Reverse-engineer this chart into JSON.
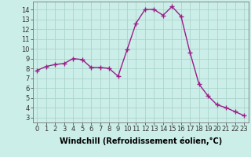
{
  "x": [
    0,
    1,
    2,
    3,
    4,
    5,
    6,
    7,
    8,
    9,
    10,
    11,
    12,
    13,
    14,
    15,
    16,
    17,
    18,
    19,
    20,
    21,
    22,
    23
  ],
  "y": [
    7.8,
    8.2,
    8.4,
    8.5,
    9.0,
    8.9,
    8.1,
    8.1,
    8.0,
    7.2,
    9.9,
    12.6,
    14.0,
    14.0,
    13.4,
    14.3,
    13.3,
    9.6,
    6.4,
    5.2,
    4.3,
    4.0,
    3.6,
    3.2
  ],
  "line_color": "#9b1d8a",
  "marker": "+",
  "marker_size": 4,
  "line_width": 1.0,
  "bg_color": "#cceee8",
  "grid_color": "#aad4cc",
  "xlabel": "Windchill (Refroidissement éolien,°C)",
  "xlabel_fontsize": 7,
  "xtick_fontsize": 6,
  "ytick_fontsize": 6,
  "xlim": [
    -0.5,
    23.5
  ],
  "ylim": [
    2.5,
    14.8
  ],
  "yticks": [
    3,
    4,
    5,
    6,
    7,
    8,
    9,
    10,
    11,
    12,
    13,
    14
  ],
  "xticks": [
    0,
    1,
    2,
    3,
    4,
    5,
    6,
    7,
    8,
    9,
    10,
    11,
    12,
    13,
    14,
    15,
    16,
    17,
    18,
    19,
    20,
    21,
    22,
    23
  ]
}
